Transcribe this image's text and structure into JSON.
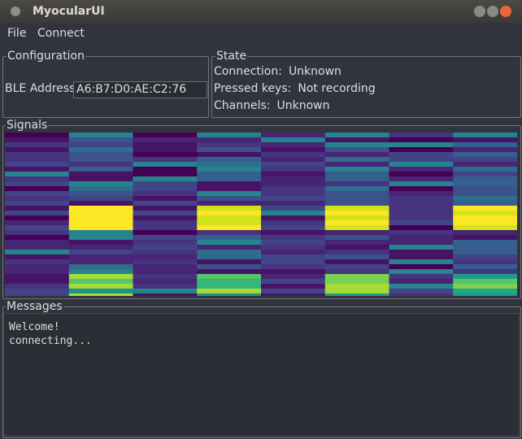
{
  "window": {
    "title": "MyocularUI"
  },
  "menu": [
    "File",
    "Connect"
  ],
  "configuration": {
    "title": "Configuration",
    "ble_address_label": "BLE Address",
    "ble_address": "A6:B7:D0:AE:C2:76"
  },
  "state": {
    "title": "State",
    "rows": [
      {
        "label": "Connection:",
        "value": "Unknown"
      },
      {
        "label": "Pressed keys:",
        "value": "Not recording"
      },
      {
        "label": "Channels:",
        "value": "Unknown"
      }
    ]
  },
  "signals": {
    "title": "Signals"
  },
  "messages": {
    "title": "Messages",
    "lines": [
      "Welcome!",
      "connecting..."
    ]
  }
}
